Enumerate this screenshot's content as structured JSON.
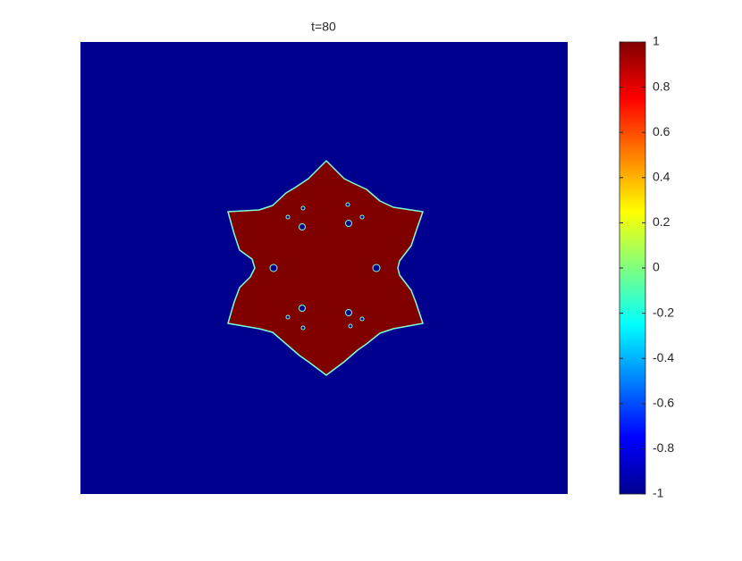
{
  "chart_data": {
    "type": "image",
    "title": "t=80",
    "colormap": "jet",
    "colorbar": {
      "clim": [
        -1,
        1
      ],
      "ticks": [
        -1,
        -0.8,
        -0.6,
        -0.4,
        -0.2,
        0,
        0.2,
        0.4,
        0.6,
        0.8,
        1
      ]
    }
  }
}
